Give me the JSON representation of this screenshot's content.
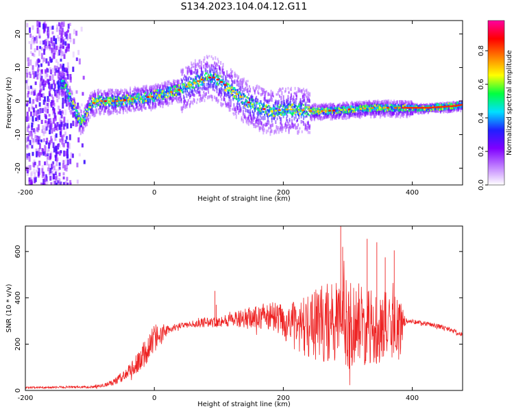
{
  "title": "S134.2023.104.04.12.G11",
  "colors": {
    "snr_line": "#ee2222",
    "spectrum_ridge": "#dd1111",
    "axes": "#000000"
  },
  "colorbar": {
    "label": "Normalized spectral amplitude",
    "ticks": [
      "0.0",
      "0.2",
      "0.4",
      "0.6",
      "0.8"
    ],
    "tick_values": [
      0.0,
      0.2,
      0.4,
      0.6,
      0.8
    ],
    "range": [
      0,
      0.98
    ],
    "colormap": [
      "#ffffff",
      "#c080ff",
      "#8000ff",
      "#2020ff",
      "#00e0ff",
      "#00ff40",
      "#ffff00",
      "#ff8000",
      "#ff0000",
      "#ff00a0"
    ]
  },
  "chart_data": [
    {
      "type": "heatmap",
      "title": "S134.2023.104.04.12.G11",
      "xlabel": "Height of straight line (km)",
      "ylabel": "Frequency (Hz)",
      "xlim": [
        -200,
        478
      ],
      "ylim": [
        -25,
        24
      ],
      "xticks": [
        "-200",
        "0",
        "200",
        "400"
      ],
      "xtick_values": [
        -200,
        0,
        200,
        400
      ],
      "yticks": [
        "-20",
        "-10",
        "0",
        "10",
        "20"
      ],
      "ytick_values": [
        -20,
        -10,
        0,
        10,
        20
      ],
      "ridge": {
        "x": [
          -140,
          -130,
          -120,
          -115,
          -110,
          -100,
          -90,
          -80,
          -60,
          -40,
          -20,
          0,
          20,
          40,
          60,
          80,
          90,
          100,
          120,
          140,
          160,
          180,
          200,
          220,
          240,
          260,
          300,
          340,
          380,
          420,
          460,
          478
        ],
        "y": [
          5,
          0,
          -4,
          -6,
          -5,
          -1,
          0,
          0,
          0,
          0.5,
          1,
          1.5,
          2.5,
          3.5,
          5.5,
          7,
          7,
          6,
          3,
          0,
          -2,
          -3,
          -2.5,
          -2.5,
          -3,
          -3,
          -2.5,
          -2,
          -2,
          -2,
          -1.5,
          -1
        ]
      }
    },
    {
      "type": "line",
      "xlabel": "Height of straight line (km)",
      "ylabel": "SNR (10 * v/v)",
      "xlim": [
        -200,
        478
      ],
      "ylim": [
        0,
        710
      ],
      "xticks": [
        "-200",
        "0",
        "200",
        "400"
      ],
      "xtick_values": [
        -200,
        0,
        200,
        400
      ],
      "yticks": [
        "0",
        "200",
        "400",
        "600"
      ],
      "ytick_values": [
        0,
        200,
        400,
        600
      ],
      "envelope": {
        "x": [
          -200,
          -100,
          -80,
          -60,
          -40,
          -20,
          0,
          20,
          40,
          60,
          80,
          100,
          120,
          140,
          160,
          180,
          200,
          220,
          240,
          260,
          280,
          300,
          320,
          340,
          360,
          380,
          390,
          400,
          420,
          440,
          460,
          478
        ],
        "mean": [
          12,
          15,
          20,
          40,
          80,
          140,
          215,
          262,
          280,
          288,
          292,
          298,
          305,
          312,
          318,
          320,
          300,
          272,
          282,
          290,
          298,
          292,
          285,
          280,
          272,
          265,
          300,
          298,
          290,
          278,
          262,
          238
        ],
        "noise": [
          4,
          5,
          8,
          15,
          30,
          55,
          55,
          20,
          12,
          15,
          20,
          25,
          30,
          40,
          55,
          65,
          75,
          110,
          140,
          170,
          190,
          200,
          180,
          170,
          150,
          140,
          10,
          10,
          10,
          10,
          10,
          10
        ]
      },
      "spikes": [
        {
          "x": 94,
          "y": 430
        },
        {
          "x": 96,
          "y": 370
        },
        {
          "x": 289,
          "y": 710
        },
        {
          "x": 292,
          "y": 620
        },
        {
          "x": 330,
          "y": 655
        },
        {
          "x": 345,
          "y": 640
        },
        {
          "x": 358,
          "y": 575
        },
        {
          "x": 372,
          "y": 605
        }
      ]
    }
  ]
}
